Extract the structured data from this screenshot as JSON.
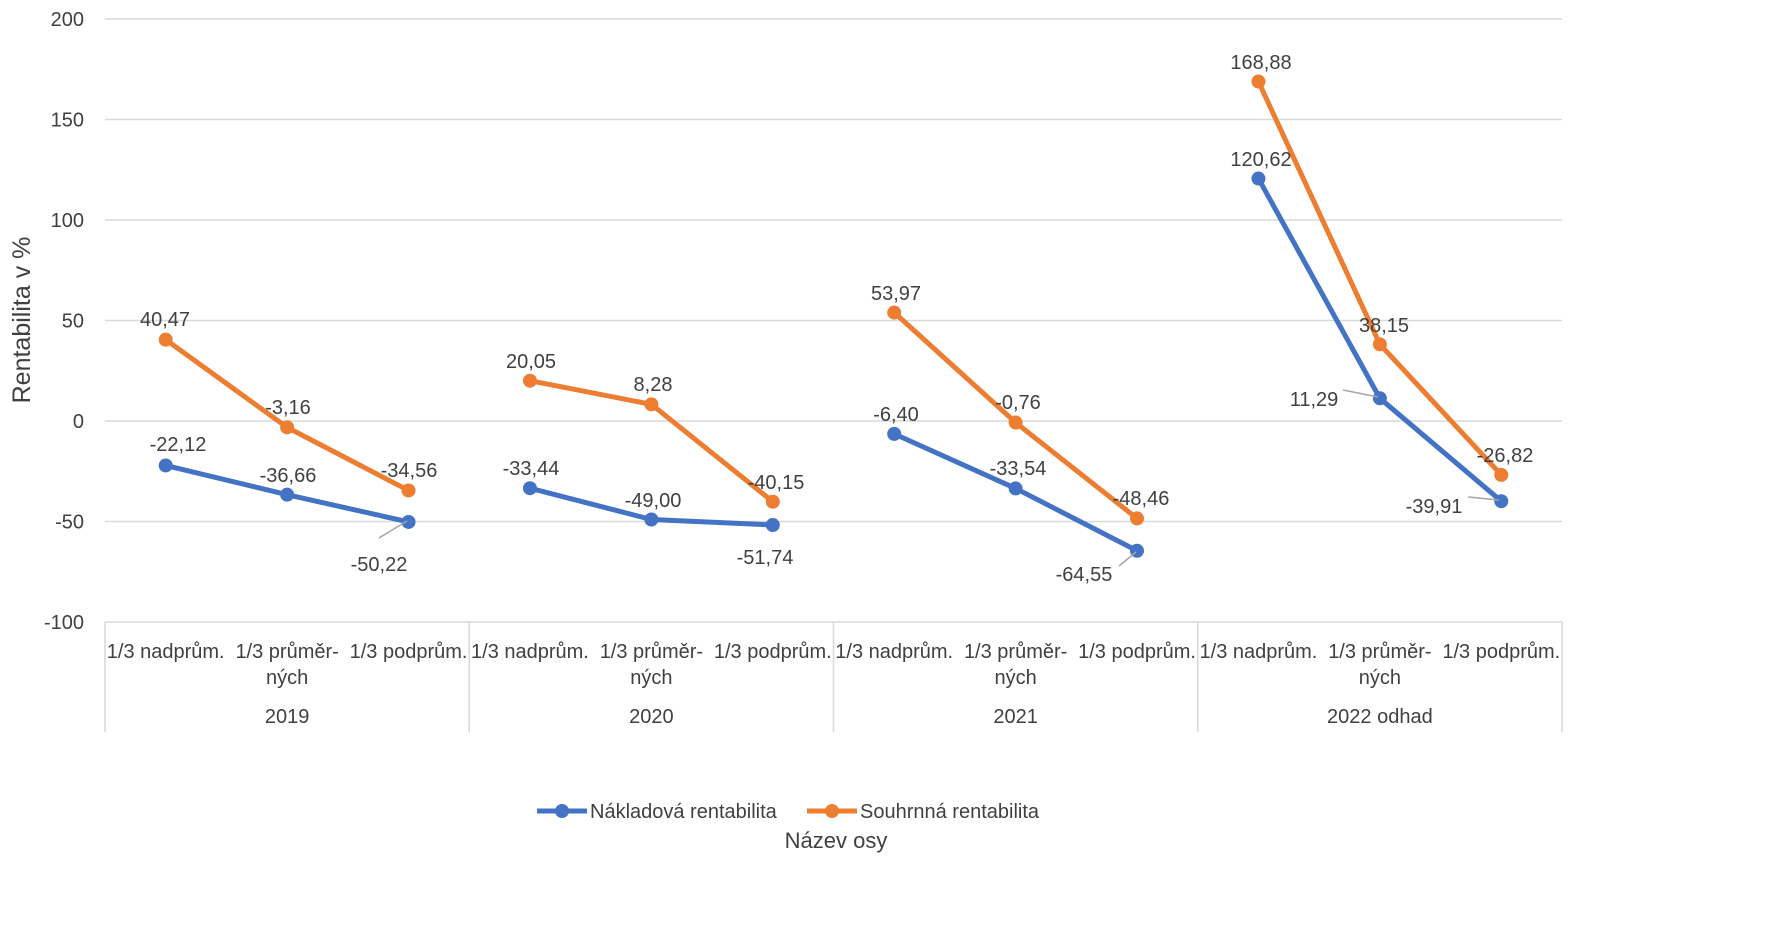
{
  "chart_data": {
    "type": "line",
    "ylabel": "Rentabilita v %",
    "xlabel": "Název osy",
    "ylim": [
      -100,
      200
    ],
    "yticks": [
      -100,
      -50,
      0,
      50,
      100,
      150,
      200
    ],
    "ytick_labels": [
      "-100",
      "-50",
      "0",
      "50",
      "100",
      "150",
      "200"
    ],
    "grid": true,
    "legend_position": "bottom",
    "groups": [
      {
        "label": "2019",
        "categories": [
          [
            "1/3 nadprům."
          ],
          [
            "1/3 průměr-",
            "ných"
          ],
          [
            "1/3 podprům."
          ]
        ]
      },
      {
        "label": "2020",
        "categories": [
          [
            "1/3 nadprům."
          ],
          [
            "1/3 průměr-",
            "ných"
          ],
          [
            "1/3 podprům."
          ]
        ]
      },
      {
        "label": "2021",
        "categories": [
          [
            "1/3 nadprům."
          ],
          [
            "1/3 průměr-",
            "ných"
          ],
          [
            "1/3 podprům."
          ]
        ]
      },
      {
        "label": "2022 odhad",
        "categories": [
          [
            "1/3 nadprům."
          ],
          [
            "1/3 průměr-",
            "ných"
          ],
          [
            "1/3 podprům."
          ]
        ]
      }
    ],
    "series": [
      {
        "name": "Nákladová rentabilita",
        "color": "#4472C4",
        "segments": [
          [
            -22.12,
            -36.66,
            -50.22
          ],
          [
            -33.44,
            -49.0,
            -51.74
          ],
          [
            -6.4,
            -33.54,
            -64.55
          ],
          [
            120.62,
            11.29,
            -39.91
          ]
        ],
        "labels": [
          [
            "-22,12",
            "-36,66",
            "-50,22"
          ],
          [
            "-33,44",
            "-49,00",
            "-51,74"
          ],
          [
            "-6,40",
            "-33,54",
            "-64,55"
          ],
          [
            "120,62",
            "11,29",
            "-39,91"
          ]
        ]
      },
      {
        "name": "Souhrnná rentabilita",
        "color": "#ED7D31",
        "segments": [
          [
            40.47,
            -3.16,
            -34.56
          ],
          [
            20.05,
            8.28,
            -40.15
          ],
          [
            53.97,
            -0.76,
            -48.46
          ],
          [
            168.88,
            38.15,
            -26.82
          ]
        ],
        "labels": [
          [
            "40,47",
            "-3,16",
            "-34,56"
          ],
          [
            "20,05",
            "8,28",
            "-40,15"
          ],
          [
            "53,97",
            "-0,76",
            "-48,46"
          ],
          [
            "168,88",
            "38,15",
            "-26,82"
          ]
        ]
      }
    ]
  }
}
